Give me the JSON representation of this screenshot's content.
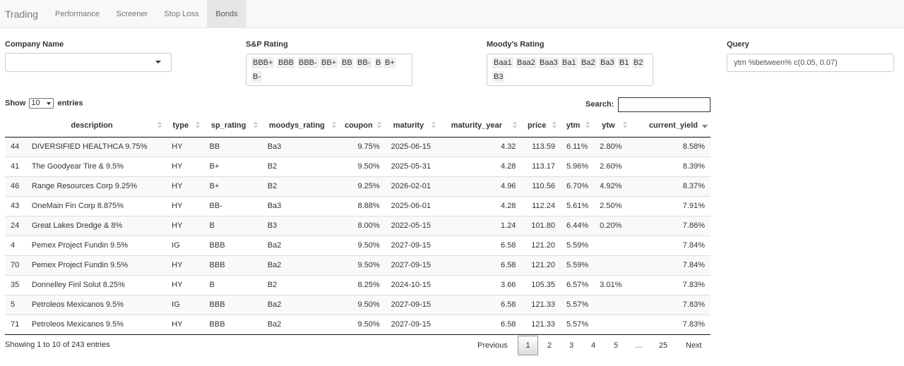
{
  "navbar": {
    "brand": "Trading",
    "tabs": [
      {
        "label": "Performance"
      },
      {
        "label": "Screener"
      },
      {
        "label": "Stop Loss"
      },
      {
        "label": "Bonds"
      }
    ]
  },
  "filters": {
    "company_label": "Company Name",
    "company_value": "",
    "sp_label": "S&P Rating",
    "sp_chips": [
      "BBB+",
      "BBB",
      "BBB-",
      "BB+",
      "BB",
      "BB-",
      "B",
      "B+",
      "B-"
    ],
    "moodys_label": "Moody's Rating",
    "moodys_chips": [
      "Baa1",
      "Baa2",
      "Baa3",
      "Ba1",
      "Ba2",
      "Ba3",
      "B1",
      "B2",
      "B3"
    ],
    "query_label": "Query",
    "query_value": "ytm %between% c(0.05, 0.07)"
  },
  "table_controls": {
    "show": "Show",
    "length_value": "10",
    "entries": "entries",
    "search_label": "Search:",
    "search_value": ""
  },
  "table": {
    "columns": [
      "",
      "description",
      "type",
      "sp_rating",
      "moodys_rating",
      "coupon",
      "maturity",
      "maturity_year",
      "price",
      "ytm",
      "ytw",
      "current_yield"
    ],
    "rows": [
      [
        "44",
        "DIVERSIFIED HEALTHCA 9.75%",
        "HY",
        "BB",
        "Ba3",
        "9.75%",
        "2025-06-15",
        "4.32",
        "113.59",
        "6.11%",
        "2.80%",
        "8.58%"
      ],
      [
        "41",
        "The Goodyear Tire & 9.5%",
        "HY",
        "B+",
        "B2",
        "9.50%",
        "2025-05-31",
        "4.28",
        "113.17",
        "5.96%",
        "2.60%",
        "8.39%"
      ],
      [
        "46",
        "Range Resources Corp 9.25%",
        "HY",
        "B+",
        "B2",
        "9.25%",
        "2026-02-01",
        "4.96",
        "110.56",
        "6.70%",
        "4.92%",
        "8.37%"
      ],
      [
        "43",
        "OneMain Fin Corp 8.875%",
        "HY",
        "BB-",
        "Ba3",
        "8.88%",
        "2025-06-01",
        "4.28",
        "112.24",
        "5.61%",
        "2.50%",
        "7.91%"
      ],
      [
        "24",
        "Great Lakes Dredge & 8%",
        "HY",
        "B",
        "B3",
        "8.00%",
        "2022-05-15",
        "1.24",
        "101.80",
        "6.44%",
        "0.20%",
        "7.86%"
      ],
      [
        "4",
        "Pemex Project Fundin 9.5%",
        "IG",
        "BBB",
        "Ba2",
        "9.50%",
        "2027-09-15",
        "6.58",
        "121.20",
        "5.59%",
        "",
        "7.84%"
      ],
      [
        "70",
        "Pemex Project Fundin 9.5%",
        "HY",
        "BBB",
        "Ba2",
        "9.50%",
        "2027-09-15",
        "6.58",
        "121.20",
        "5.59%",
        "",
        "7.84%"
      ],
      [
        "35",
        "Donnelley Finl Solut 8.25%",
        "HY",
        "B",
        "B2",
        "8.25%",
        "2024-10-15",
        "3.66",
        "105.35",
        "6.57%",
        "3.01%",
        "7.83%"
      ],
      [
        "5",
        "Petroleos Mexicanos 9.5%",
        "IG",
        "BBB",
        "Ba2",
        "9.50%",
        "2027-09-15",
        "6.58",
        "121.33",
        "5.57%",
        "",
        "7.83%"
      ],
      [
        "71",
        "Petroleos Mexicanos 9.5%",
        "HY",
        "BBB",
        "Ba2",
        "9.50%",
        "2027-09-15",
        "6.58",
        "121.33",
        "5.57%",
        "",
        "7.83%"
      ]
    ]
  },
  "footer": {
    "info": "Showing 1 to 10 of 243 entries",
    "previous": "Previous",
    "pages": [
      "1",
      "2",
      "3",
      "4",
      "5",
      "…",
      "25"
    ],
    "next": "Next",
    "current_page": "1"
  }
}
